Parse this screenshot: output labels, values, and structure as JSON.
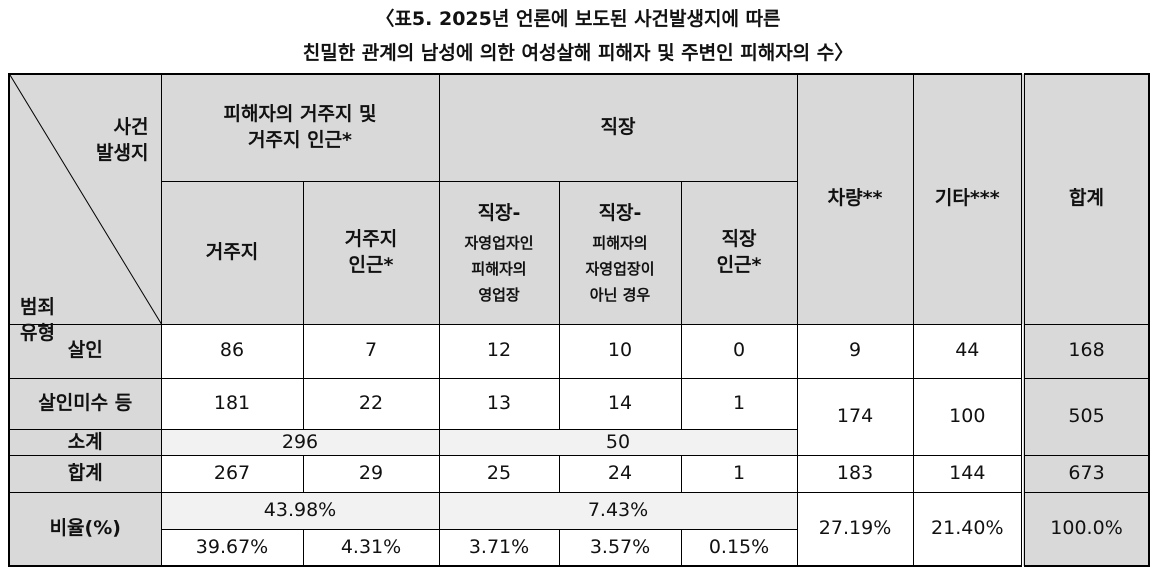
{
  "title": [
    "〈표5. 2025년 언론에 보도된 사건발생지에 따른",
    "친밀한 관계의 남성에 의한 여성살해 피해자 및 주변인 피해자의 수〉"
  ],
  "header": {
    "corner_top": [
      "사건",
      "발생지"
    ],
    "corner_bottom": [
      "범죄",
      "유형"
    ],
    "residence": [
      "피해자의 거주지 및",
      "거주지 인근*"
    ],
    "workplace": "직장",
    "vehicle": "차량**",
    "other": "기타***",
    "total": "합계",
    "sub": [
      [
        "거주지"
      ],
      [
        "거주지",
        "인근*"
      ],
      [
        "직장-",
        "자영업자인",
        "피해자의",
        "영업장"
      ],
      [
        "직장-",
        "피해자의",
        "자영업장이",
        "아닌 경우"
      ],
      [
        "직장",
        "인근*"
      ]
    ]
  },
  "rows": {
    "murder": {
      "label": "살인",
      "values": [
        "86",
        "7",
        "12",
        "10",
        "0",
        "9",
        "44",
        "168"
      ]
    },
    "attempt": {
      "label": "살인미수 등",
      "values": [
        "181",
        "22",
        "13",
        "14",
        "1",
        "174",
        "100",
        "505"
      ]
    },
    "subtotal": {
      "label": "소계",
      "values": [
        "296",
        "50"
      ]
    },
    "total": {
      "label": "합계",
      "values": [
        "267",
        "29",
        "25",
        "24",
        "1",
        "183",
        "144",
        "673"
      ]
    },
    "ratio": {
      "label": "비율(%)",
      "group": [
        "43.98%",
        "7.43%"
      ],
      "values": [
        "39.67%",
        "4.31%",
        "3.71%",
        "3.57%",
        "0.15%"
      ],
      "others": [
        "27.19%",
        "21.40%",
        "100.0%"
      ]
    }
  }
}
